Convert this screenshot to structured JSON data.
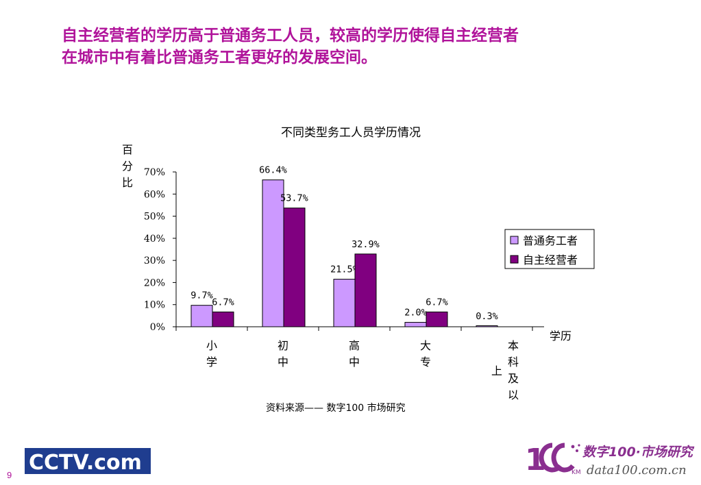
{
  "headline": {
    "line1": "自主经营者的学历高于普通务工人员，较高的学历使得自主经营者",
    "line2": "在城市中有着比普通务工者更好的发展空间。"
  },
  "chart_data": {
    "type": "bar",
    "title": "不同类型务工人员学历情况",
    "ylabel": "百分比",
    "xlabel": "学历",
    "ylim": [
      0,
      70
    ],
    "yticks": [
      "0%",
      "10%",
      "20%",
      "30%",
      "40%",
      "50%",
      "60%",
      "70%"
    ],
    "categories": [
      "小学",
      "初中",
      "高中",
      "大专",
      "本科及以上"
    ],
    "series": [
      {
        "name": "普通务工者",
        "color": "#cc99ff",
        "values": [
          9.7,
          66.4,
          21.5,
          2.0,
          0.3
        ],
        "labels": [
          "9.7%",
          "66.4%",
          "21.5%",
          "2.0%",
          "0.3%"
        ]
      },
      {
        "name": "自主经营者",
        "color": "#800080",
        "values": [
          6.7,
          53.7,
          32.9,
          6.7,
          0.0
        ],
        "labels": [
          "6.7%",
          "53.7%",
          "32.9%",
          "6.7%",
          ""
        ]
      }
    ],
    "legend_position": "right",
    "grid": false
  },
  "source_text": "资料来源——  数字100   市场研究",
  "page_number": "9",
  "logos": {
    "cctv": "CCTV.com",
    "data100_cn": "数字100·市场研究",
    "data100_url": "data100.com.cn",
    "data100_km": "KM"
  }
}
